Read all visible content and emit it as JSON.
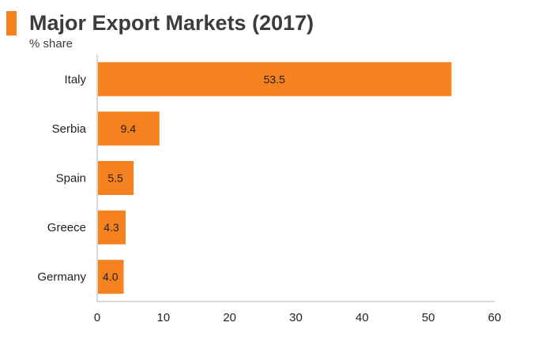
{
  "chart_data": {
    "type": "bar",
    "orientation": "horizontal",
    "title": "Major Export Markets (2017)",
    "subtitle": "% share",
    "categories": [
      "Italy",
      "Serbia",
      "Spain",
      "Greece",
      "Germany"
    ],
    "values": [
      53.5,
      9.4,
      5.5,
      4.3,
      4.0
    ],
    "data_labels": [
      "53.5",
      "9.4",
      "5.5",
      "4.3",
      "4.0"
    ],
    "xlim": [
      0,
      60
    ],
    "x_ticks": [
      0,
      10,
      20,
      30,
      40,
      50,
      60
    ],
    "grid": false,
    "legend": "none",
    "bar_color": "#f5821f"
  }
}
